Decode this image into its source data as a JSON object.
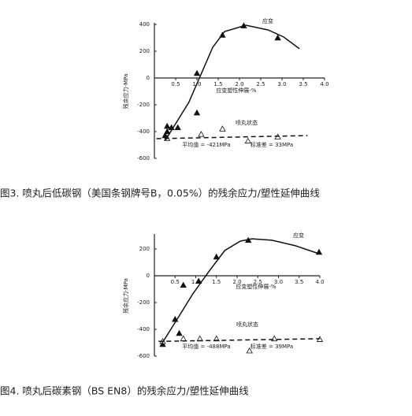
{
  "chart_data": [
    {
      "type": "scatter",
      "caption": "图3. 喷丸后低碳钢（美国条钢牌号B，0.05%）的残余应力/塑性延伸曲线",
      "x_label": "应变塑性伸展-%",
      "y_label": "残余应力-MPa",
      "annotations": [
        "应变",
        "喷丸状态",
        "平均值 = -421MPa",
        "标准差 = 33MPa"
      ],
      "xlim": [
        0,
        4.0
      ],
      "ylim": [
        -600,
        400
      ],
      "xticks": [
        0.5,
        {
          "value": 1,
          "label": "1.0"
        },
        1.5,
        {
          "value": 2,
          "label": "2.0"
        },
        2.5,
        {
          "value": 3,
          "label": "3.0"
        },
        3.5,
        {
          "value": 4,
          "label": "4.0"
        }
      ],
      "yticks": [
        400,
        200,
        0,
        -200,
        -400,
        -600
      ],
      "series": [
        {
          "marker": "filled-triangle",
          "color": "#111111",
          "x": [
            1.0,
            1.6,
            2.1,
            2.9,
            1.0,
            0.3,
            0.4,
            0.55,
            0.3,
            0.25
          ],
          "values": [
            35,
            320,
            390,
            300,
            -260,
            -360,
            -370,
            -370,
            -400,
            -430
          ]
        },
        {
          "marker": "open-triangle",
          "color": "#111111",
          "x": [
            1.1,
            1.6,
            2.2,
            2.9,
            0.3
          ],
          "values": [
            -420,
            -380,
            -470,
            -440,
            -450
          ]
        },
        {
          "marker": "line",
          "color": "#111111",
          "x": [
            0.26,
            0.81,
            1.09,
            1.37,
            1.65,
            2.15,
            2.67,
            3.04,
            3.41
          ],
          "values": [
            -464,
            -182,
            24,
            229,
            347,
            394,
            359,
            306,
            218
          ]
        },
        {
          "marker": "dashed-line",
          "color": "#111111",
          "x": [
            0.05,
            3.6
          ],
          "values": [
            -453,
            -430
          ]
        }
      ]
    },
    {
      "type": "scatter",
      "caption": "图4. 喷丸后碳素钢（BS EN8）的残余应力/塑性延伸曲线",
      "x_label": "应变塑性伸展-%",
      "y_label": "残余应力-MPa",
      "annotations": [
        "应变",
        "喷丸状态",
        "平均值 = -488MPa",
        "标准差 = 39MPa"
      ],
      "xlim": [
        0,
        4.0
      ],
      "ylim": [
        -600,
        300
      ],
      "xticks": [
        0.5,
        {
          "value": 1,
          "label": "1.0"
        },
        1.5,
        {
          "value": 2,
          "label": "2.0"
        },
        2.5,
        {
          "value": 3,
          "label": "3.0"
        },
        3.5,
        {
          "value": 4,
          "label": "4.0"
        }
      ],
      "yticks": [
        200,
        0,
        -200,
        -400,
        -600
      ],
      "series": [
        {
          "marker": "filled-triangle",
          "color": "#111111",
          "x": [
            0.5,
            0.6,
            0.7,
            1.07,
            1.5,
            2.27,
            3.98,
            0.2
          ],
          "values": [
            -325,
            -430,
            -70,
            -40,
            141,
            265,
            176,
            -512
          ]
        },
        {
          "marker": "open-triangle",
          "color": "#111111",
          "x": [
            0.2,
            0.7,
            1.1,
            1.5,
            2.3,
            2.9,
            4.0
          ],
          "values": [
            -490,
            -470,
            -470,
            -470,
            -560,
            -470,
            -475
          ]
        },
        {
          "marker": "line",
          "color": "#111111",
          "x": [
            0.17,
            0.55,
            0.93,
            1.31,
            1.7,
            2.08,
            2.36,
            2.84,
            3.41,
            3.98
          ],
          "values": [
            -512,
            -324,
            -135,
            29,
            188,
            259,
            276,
            265,
            224,
            165
          ]
        },
        {
          "marker": "dashed-line",
          "color": "#111111",
          "x": [
            0.1,
            4.0
          ],
          "values": [
            -490,
            -470
          ]
        }
      ]
    }
  ]
}
